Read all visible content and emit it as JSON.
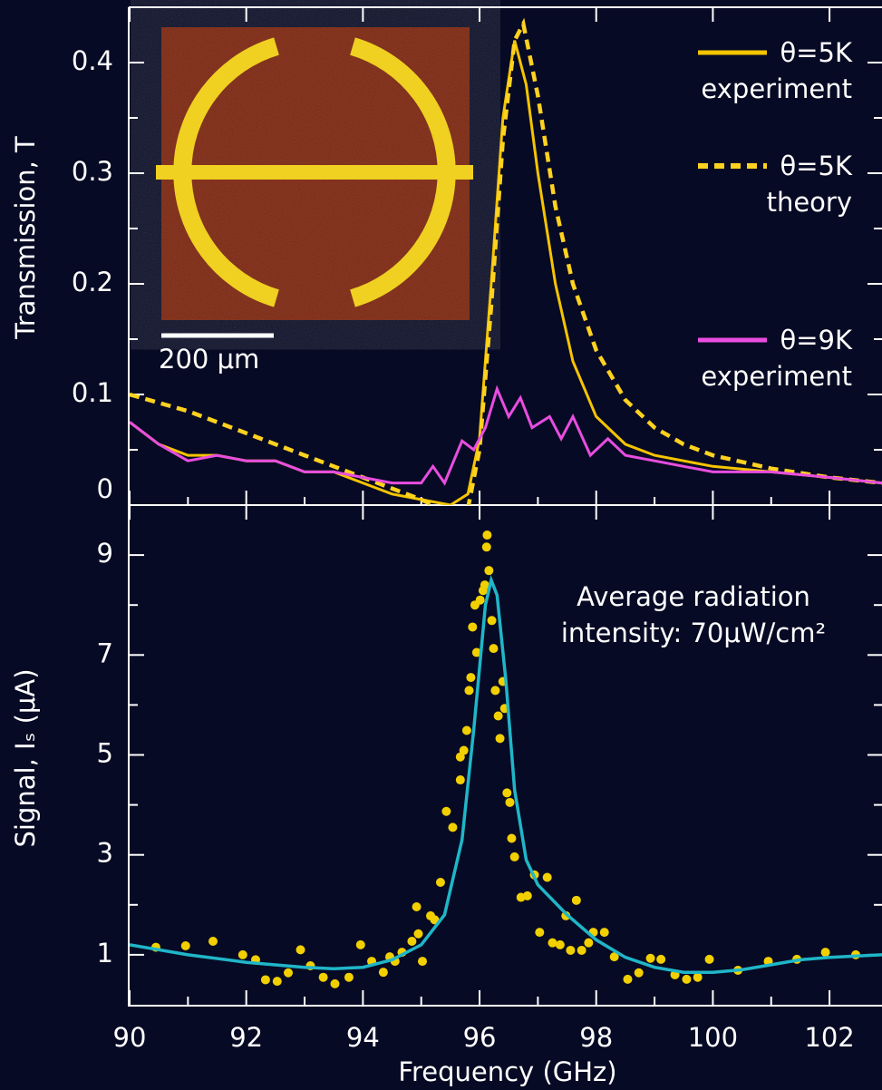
{
  "chart_data": [
    {
      "type": "line",
      "y_label": "Transmission, T",
      "xlim": [
        90,
        102.9
      ],
      "ylim": [
        0,
        0.45
      ],
      "yticks": [
        0,
        0.1,
        0.2,
        0.3,
        0.4
      ],
      "yticks_minor": [
        0.05,
        0.15,
        0.25,
        0.35
      ],
      "series": [
        {
          "name": "θ=5K",
          "name_line2": "experiment",
          "color": "#f5c400",
          "style": "solid",
          "x": [
            90,
            90.5,
            91,
            91.5,
            92,
            92.5,
            93,
            93.5,
            94,
            94.5,
            95,
            95.5,
            95.8,
            96,
            96.2,
            96.4,
            96.6,
            96.8,
            97,
            97.3,
            97.6,
            98,
            98.5,
            99,
            99.5,
            100,
            101,
            102,
            102.9
          ],
          "values": [
            0.075,
            0.055,
            0.045,
            0.045,
            0.04,
            0.04,
            0.03,
            0.03,
            0.02,
            0.01,
            0.005,
            0,
            0.01,
            0.06,
            0.2,
            0.35,
            0.42,
            0.38,
            0.3,
            0.2,
            0.13,
            0.08,
            0.055,
            0.045,
            0.04,
            0.035,
            0.03,
            0.025,
            0.02
          ]
        },
        {
          "name": "θ=5K",
          "name_line2": "theory",
          "color": "#ffd21f",
          "style": "dashed",
          "x": [
            90,
            91,
            92,
            93,
            94,
            95,
            95.4,
            95.8,
            96,
            96.2,
            96.4,
            96.6,
            96.75,
            97,
            97.3,
            97.6,
            98,
            98.5,
            99,
            99.5,
            100,
            101,
            102,
            102.9
          ],
          "values": [
            0.1,
            0.085,
            0.065,
            0.045,
            0.025,
            0.005,
            -0.005,
            -0.003,
            0.05,
            0.18,
            0.33,
            0.42,
            0.435,
            0.37,
            0.27,
            0.2,
            0.14,
            0.095,
            0.07,
            0.055,
            0.045,
            0.033,
            0.025,
            0.02
          ]
        },
        {
          "name": "θ=9K",
          "name_line2": "experiment",
          "color": "#e84de0",
          "style": "solid",
          "x": [
            90,
            90.5,
            91,
            91.5,
            92,
            92.5,
            93,
            93.5,
            94,
            94.5,
            95,
            95.2,
            95.4,
            95.7,
            95.9,
            96.1,
            96.3,
            96.5,
            96.7,
            96.9,
            97.2,
            97.4,
            97.6,
            97.9,
            98.2,
            98.5,
            99,
            99.5,
            100,
            100.5,
            101,
            102,
            102.9
          ],
          "values": [
            0.075,
            0.055,
            0.04,
            0.045,
            0.04,
            0.04,
            0.03,
            0.03,
            0.025,
            0.02,
            0.02,
            0.035,
            0.02,
            0.058,
            0.05,
            0.07,
            0.105,
            0.08,
            0.097,
            0.07,
            0.08,
            0.06,
            0.08,
            0.045,
            0.06,
            0.045,
            0.04,
            0.035,
            0.03,
            0.03,
            0.03,
            0.025,
            0.02
          ]
        }
      ],
      "inset_scale_label": "200 μm"
    },
    {
      "type": "scatter",
      "x_label": "Frequency (GHz)",
      "y_label": "Signal, Iₛ (μA)",
      "xlim": [
        90,
        102.9
      ],
      "ylim": [
        0,
        10
      ],
      "xticks": [
        90,
        92,
        94,
        96,
        98,
        100,
        102
      ],
      "xticks_minor": [
        91,
        93,
        95,
        97,
        99,
        101
      ],
      "yticks": [
        1,
        3,
        5,
        7,
        9
      ],
      "yticks_minor": [
        2,
        4,
        6,
        8
      ],
      "annotation": [
        "Average radiation",
        "intensity: 70μW/cm²"
      ],
      "points": {
        "color": "#f2d000",
        "x": [
          90.45,
          90.96,
          91.43,
          91.94,
          92.16,
          92.33,
          92.53,
          92.72,
          92.93,
          93.1,
          93.32,
          93.52,
          93.76,
          93.96,
          94.15,
          94.35,
          94.46,
          94.55,
          94.67,
          94.84,
          94.95,
          95.02,
          94.92,
          95.16,
          95.23,
          95.33,
          95.43,
          95.54,
          95.67,
          95.67,
          95.73,
          95.78,
          95.82,
          95.85,
          95.88,
          95.92,
          95.95,
          96.01,
          96.06,
          96.09,
          96.12,
          96.13,
          96.16,
          96.21,
          96.24,
          96.27,
          96.32,
          96.35,
          96.4,
          96.43,
          96.47,
          96.52,
          96.55,
          96.6,
          96.71,
          96.82,
          96.94,
          97.16,
          97.03,
          97.25,
          97.38,
          97.48,
          97.56,
          97.66,
          97.75,
          97.87,
          97.95,
          98.14,
          98.31,
          98.54,
          98.73,
          98.93,
          99.11,
          99.35,
          99.55,
          99.74,
          99.94,
          100.43,
          100.95,
          101.44,
          101.93,
          102.45
        ],
        "values": [
          1.15,
          1.18,
          1.27,
          1.0,
          0.9,
          0.5,
          0.47,
          0.64,
          1.1,
          0.78,
          0.55,
          0.42,
          0.55,
          1.2,
          0.87,
          0.65,
          0.96,
          0.87,
          1.05,
          1.27,
          1.42,
          0.87,
          1.96,
          1.78,
          1.7,
          2.45,
          3.87,
          3.55,
          4.5,
          4.96,
          5.09,
          5.49,
          6.29,
          6.55,
          7.56,
          8.0,
          7.05,
          8.1,
          8.29,
          8.4,
          9.16,
          9.4,
          8.69,
          7.69,
          7.13,
          6.29,
          5.78,
          5.33,
          6.47,
          5.93,
          4.24,
          4.05,
          3.33,
          2.96,
          2.15,
          2.18,
          2.6,
          2.55,
          1.45,
          1.24,
          1.2,
          1.78,
          1.09,
          2.09,
          1.09,
          1.24,
          1.45,
          1.45,
          0.96,
          0.51,
          0.64,
          0.93,
          0.91,
          0.6,
          0.51,
          0.55,
          0.91,
          0.69,
          0.87,
          0.91,
          1.05,
          1.0
        ]
      },
      "fit": {
        "color": "#1fb6c8",
        "x": [
          90,
          91,
          92,
          93,
          93.5,
          94,
          94.5,
          95,
          95.4,
          95.7,
          95.9,
          96.1,
          96.2,
          96.3,
          96.45,
          96.6,
          96.8,
          97,
          97.5,
          98,
          98.5,
          99,
          99.5,
          100,
          100.5,
          101,
          101.5,
          102,
          102.9
        ],
        "values": [
          1.2,
          1.0,
          0.85,
          0.75,
          0.72,
          0.75,
          0.9,
          1.2,
          1.8,
          3.3,
          5.5,
          8.0,
          8.5,
          8.2,
          6.5,
          4.3,
          2.9,
          2.4,
          1.8,
          1.3,
          0.95,
          0.75,
          0.65,
          0.65,
          0.7,
          0.8,
          0.9,
          0.95,
          1.0
        ]
      }
    }
  ]
}
